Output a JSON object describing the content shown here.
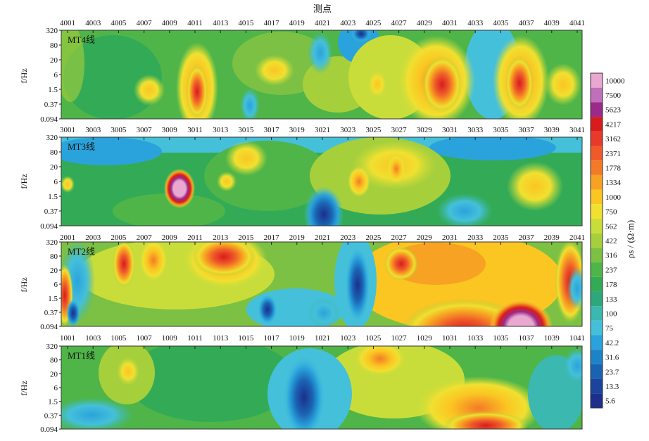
{
  "chart_data": {
    "type": "heatmap",
    "title": "测点",
    "ylabel": "f/Hz",
    "colorbar_label": "ρs / (Ω·m)",
    "freq_ticks": [
      "320",
      "80",
      "20",
      "6",
      "1.5",
      "0.37",
      "0.094"
    ],
    "colorbar": {
      "levels": [
        "10000",
        "7500",
        "5623",
        "4217",
        "3162",
        "2371",
        "1778",
        "1334",
        "1000",
        "750",
        "562",
        "422",
        "316",
        "237",
        "178",
        "133",
        "100",
        "75",
        "42.2",
        "31.6",
        "23.7",
        "13.3",
        "5.6"
      ],
      "colors": [
        "#e8a8d0",
        "#c070b8",
        "#9b2a8a",
        "#d81c1c",
        "#e83a2a",
        "#ee5a2a",
        "#f37b28",
        "#f7a222",
        "#fbc522",
        "#f1e030",
        "#c9dd3a",
        "#a6cf3c",
        "#7cc143",
        "#4fb548",
        "#33ab56",
        "#2ea87a",
        "#3bb8b0",
        "#45c0da",
        "#2aa3dc",
        "#1d83c8",
        "#1a63b2",
        "#1a449e",
        "#1d2e8c"
      ]
    },
    "panels": [
      {
        "label": "MT4线",
        "stations": [
          "4001",
          "4003",
          "4005",
          "4007",
          "4009",
          "4011",
          "4013",
          "4015",
          "4017",
          "4019",
          "4021",
          "4023",
          "4025",
          "4027",
          "4029",
          "4031",
          "4033",
          "4035",
          "4037",
          "4039",
          "4041"
        ],
        "anomalies": [
          {
            "station": "4011",
            "freq": "1.5",
            "value": 4217
          },
          {
            "station": "4031",
            "freq": "1.5",
            "value": 3162
          },
          {
            "station": "4037",
            "freq": "1.5",
            "value": 3162
          },
          {
            "station": "4024",
            "freq": "320",
            "value": 23.7
          }
        ]
      },
      {
        "label": "MT3线",
        "stations": [
          "3001",
          "3003",
          "3005",
          "3007",
          "3009",
          "3011",
          "3013",
          "3015",
          "3017",
          "3019",
          "3021",
          "3023",
          "3025",
          "3027",
          "3029",
          "3031",
          "3033",
          "3035",
          "3037",
          "3039",
          "3041"
        ],
        "anomalies": [
          {
            "station": "3010",
            "freq": "6",
            "value": 10000
          },
          {
            "station": "3024",
            "freq": "6",
            "value": 1778
          },
          {
            "station": "3021",
            "freq": "0.37",
            "value": 23.7
          }
        ]
      },
      {
        "label": "MT2线",
        "stations": [
          "2001",
          "2003",
          "2005",
          "2007",
          "2009",
          "2011",
          "2013",
          "2015",
          "2017",
          "2019",
          "2021",
          "2023",
          "2025",
          "2027",
          "2029",
          "2031",
          "2033",
          "2035",
          "2037",
          "2039",
          "2041"
        ],
        "anomalies": [
          {
            "station": "2036",
            "freq": "0.094",
            "value": 10000
          },
          {
            "station": "2024",
            "freq": "6",
            "value": 5.6
          },
          {
            "station": "2013",
            "freq": "80",
            "value": 4217
          },
          {
            "station": "2005",
            "freq": "80",
            "value": 4217
          }
        ]
      },
      {
        "label": "MT1线",
        "stations": [
          "1001",
          "1003",
          "1005",
          "1007",
          "1009",
          "1011",
          "1013",
          "1015",
          "1017",
          "1019",
          "1021",
          "1023",
          "1025",
          "1027",
          "1029",
          "1031",
          "1033",
          "1035",
          "1037",
          "1039",
          "1041"
        ],
        "anomalies": [
          {
            "station": "1019",
            "freq": "1.5",
            "value": 5.6
          },
          {
            "station": "1025",
            "freq": "80",
            "value": 1334
          },
          {
            "station": "1036",
            "freq": "0.094",
            "value": 3162
          }
        ]
      }
    ]
  }
}
